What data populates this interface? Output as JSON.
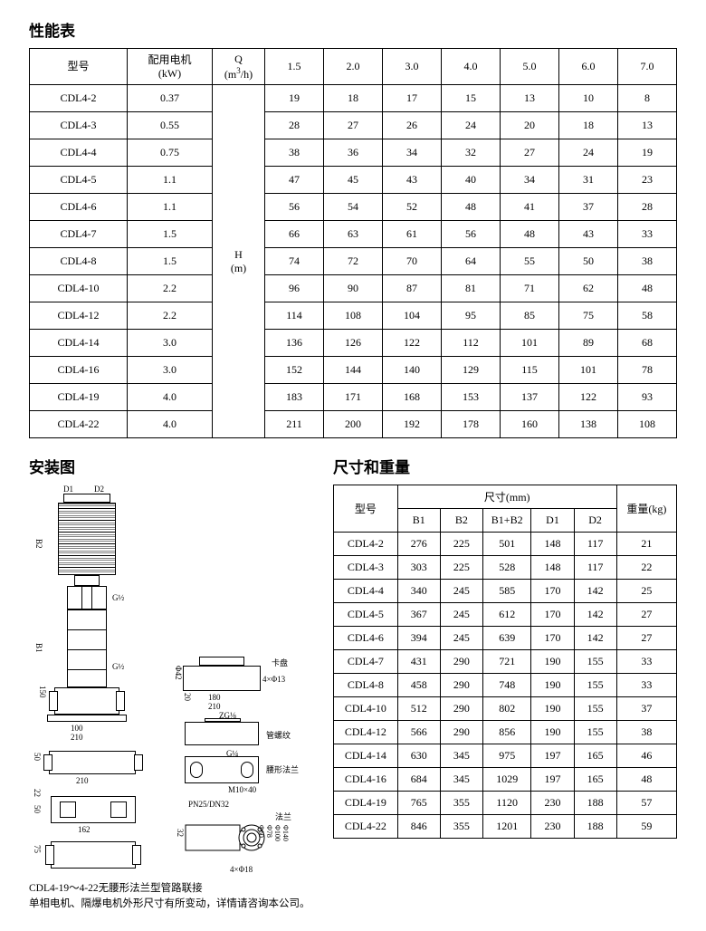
{
  "titles": {
    "perf": "性能表",
    "install": "安装图",
    "dim": "尺寸和重量"
  },
  "perf_header": {
    "model": "型号",
    "motor_line1": "配用电机",
    "motor_line2": "(kW)",
    "q_label": "Q",
    "q_unit_pre": "(m",
    "q_unit_sup": "3",
    "q_unit_post": "/h)",
    "h_label": "H",
    "h_unit": "(m)",
    "q_values": [
      "1.5",
      "2.0",
      "3.0",
      "4.0",
      "5.0",
      "6.0",
      "7.0"
    ]
  },
  "perf_rows": [
    {
      "model": "CDL4-2",
      "kw": "0.37",
      "h": [
        "19",
        "18",
        "17",
        "15",
        "13",
        "10",
        "8"
      ]
    },
    {
      "model": "CDL4-3",
      "kw": "0.55",
      "h": [
        "28",
        "27",
        "26",
        "24",
        "20",
        "18",
        "13"
      ]
    },
    {
      "model": "CDL4-4",
      "kw": "0.75",
      "h": [
        "38",
        "36",
        "34",
        "32",
        "27",
        "24",
        "19"
      ]
    },
    {
      "model": "CDL4-5",
      "kw": "1.1",
      "h": [
        "47",
        "45",
        "43",
        "40",
        "34",
        "31",
        "23"
      ]
    },
    {
      "model": "CDL4-6",
      "kw": "1.1",
      "h": [
        "56",
        "54",
        "52",
        "48",
        "41",
        "37",
        "28"
      ]
    },
    {
      "model": "CDL4-7",
      "kw": "1.5",
      "h": [
        "66",
        "63",
        "61",
        "56",
        "48",
        "43",
        "33"
      ]
    },
    {
      "model": "CDL4-8",
      "kw": "1.5",
      "h": [
        "74",
        "72",
        "70",
        "64",
        "55",
        "50",
        "38"
      ]
    },
    {
      "model": "CDL4-10",
      "kw": "2.2",
      "h": [
        "96",
        "90",
        "87",
        "81",
        "71",
        "62",
        "48"
      ]
    },
    {
      "model": "CDL4-12",
      "kw": "2.2",
      "h": [
        "114",
        "108",
        "104",
        "95",
        "85",
        "75",
        "58"
      ]
    },
    {
      "model": "CDL4-14",
      "kw": "3.0",
      "h": [
        "136",
        "126",
        "122",
        "112",
        "101",
        "89",
        "68"
      ]
    },
    {
      "model": "CDL4-16",
      "kw": "3.0",
      "h": [
        "152",
        "144",
        "140",
        "129",
        "115",
        "101",
        "78"
      ]
    },
    {
      "model": "CDL4-19",
      "kw": "4.0",
      "h": [
        "183",
        "171",
        "168",
        "153",
        "137",
        "122",
        "93"
      ]
    },
    {
      "model": "CDL4-22",
      "kw": "4.0",
      "h": [
        "211",
        "200",
        "192",
        "178",
        "160",
        "138",
        "108"
      ]
    }
  ],
  "dim_header": {
    "model": "型号",
    "size_mm": "尺寸(mm)",
    "weight": "重量(kg)",
    "cols": [
      "B1",
      "B2",
      "B1+B2",
      "D1",
      "D2"
    ]
  },
  "dim_rows": [
    {
      "model": "CDL4-2",
      "v": [
        "276",
        "225",
        "501",
        "148",
        "117"
      ],
      "wt": "21"
    },
    {
      "model": "CDL4-3",
      "v": [
        "303",
        "225",
        "528",
        "148",
        "117"
      ],
      "wt": "22"
    },
    {
      "model": "CDL4-4",
      "v": [
        "340",
        "245",
        "585",
        "170",
        "142"
      ],
      "wt": "25"
    },
    {
      "model": "CDL4-5",
      "v": [
        "367",
        "245",
        "612",
        "170",
        "142"
      ],
      "wt": "27"
    },
    {
      "model": "CDL4-6",
      "v": [
        "394",
        "245",
        "639",
        "170",
        "142"
      ],
      "wt": "27"
    },
    {
      "model": "CDL4-7",
      "v": [
        "431",
        "290",
        "721",
        "190",
        "155"
      ],
      "wt": "33"
    },
    {
      "model": "CDL4-8",
      "v": [
        "458",
        "290",
        "748",
        "190",
        "155"
      ],
      "wt": "33"
    },
    {
      "model": "CDL4-10",
      "v": [
        "512",
        "290",
        "802",
        "190",
        "155"
      ],
      "wt": "37"
    },
    {
      "model": "CDL4-12",
      "v": [
        "566",
        "290",
        "856",
        "190",
        "155"
      ],
      "wt": "38"
    },
    {
      "model": "CDL4-14",
      "v": [
        "630",
        "345",
        "975",
        "197",
        "165"
      ],
      "wt": "46"
    },
    {
      "model": "CDL4-16",
      "v": [
        "684",
        "345",
        "1029",
        "197",
        "165"
      ],
      "wt": "48"
    },
    {
      "model": "CDL4-19",
      "v": [
        "765",
        "355",
        "1120",
        "230",
        "188"
      ],
      "wt": "57"
    },
    {
      "model": "CDL4-22",
      "v": [
        "846",
        "355",
        "1201",
        "230",
        "188"
      ],
      "wt": "59"
    }
  ],
  "diagram_labels": {
    "d1": "D1",
    "d2": "D2",
    "b1": "B1",
    "b2": "B2",
    "g12a": "G½",
    "g12b": "G½",
    "kazhuan": "卡盘",
    "hole413": "4×Φ13",
    "zg18": "ZG⅛",
    "pipe_thread": "管螺纹",
    "g14": "G¼",
    "m10x40": "M10×40",
    "yao_flange": "腰形法兰",
    "pn25dn32": "PN25/DN32",
    "flange": "法兰",
    "hole418": "4×Φ18",
    "d60": "Φ60",
    "d78": "Φ78",
    "d100": "Φ100",
    "d140": "Φ140",
    "d42": "Φ42",
    "n50": "50",
    "n100": "100",
    "n150": "150",
    "n180": "180",
    "n210": "210",
    "n22": "22",
    "n75": "75",
    "n162": "162",
    "n32": "32",
    "n20": "20"
  },
  "footnotes": {
    "line1": "CDL4-19～4-22无腰形法兰型管路联接",
    "line2": "单相电机、隔爆电机外形尺寸有所变动，详情请咨询本公司。"
  },
  "colors": {
    "border": "#000000",
    "bg": "#ffffff",
    "text": "#000000"
  }
}
